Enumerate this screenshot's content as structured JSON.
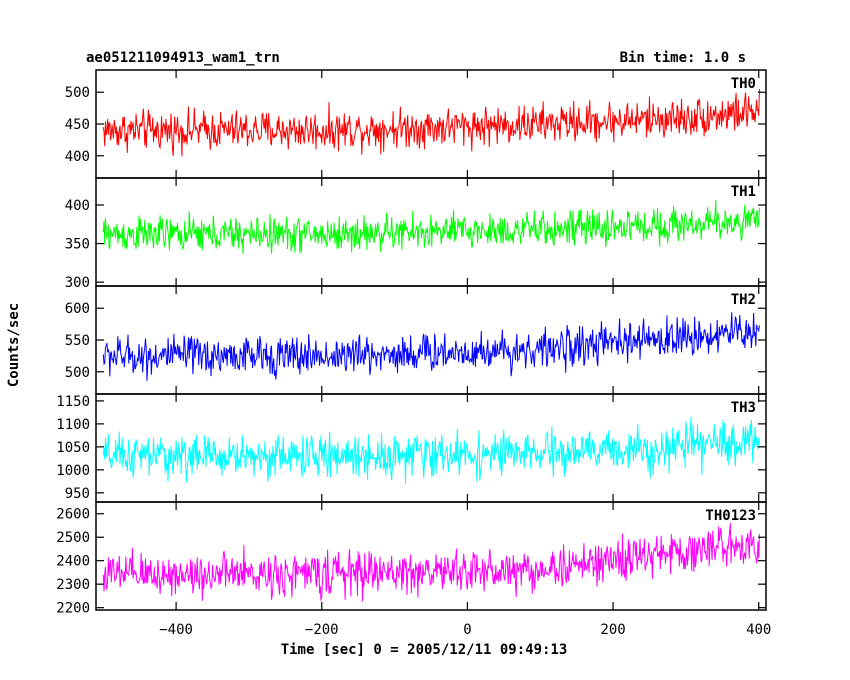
{
  "header": {
    "title": "ae051211094913_wam1_trn",
    "bin_time": "Bin time: 1.0 s"
  },
  "chart_data": {
    "type": "line",
    "title": "ae051211094913_wam1_trn",
    "subtitle": "Bin time: 1.0 s",
    "xlabel": "Time [sec] 0 = 2005/12/11 09:49:13",
    "ylabel": "Counts/sec",
    "xlim": [
      -510,
      410
    ],
    "x_ticks": [
      -400,
      -200,
      0,
      200,
      400
    ],
    "x_tick_labels": [
      "−400",
      "−200",
      "0",
      "200",
      "400"
    ],
    "x_range": [
      -500,
      401
    ],
    "grid": false,
    "panels": [
      {
        "name": "TH0",
        "color": "#ff0000",
        "ylim": [
          365,
          535
        ],
        "y_ticks": [
          400,
          450,
          500
        ],
        "y_tick_labels": [
          "400",
          "450",
          "500"
        ],
        "trend": [
          [
            -500,
            440
          ],
          [
            -200,
            440
          ],
          [
            100,
            450
          ],
          [
            300,
            460
          ],
          [
            401,
            470
          ]
        ],
        "noise_amp": 32
      },
      {
        "name": "TH1",
        "color": "#00ff00",
        "ylim": [
          295,
          435
        ],
        "y_ticks": [
          300,
          350,
          400
        ],
        "y_tick_labels": [
          "300",
          "350",
          "400"
        ],
        "trend": [
          [
            -500,
            362
          ],
          [
            -200,
            362
          ],
          [
            100,
            368
          ],
          [
            300,
            375
          ],
          [
            401,
            380
          ]
        ],
        "noise_amp": 24
      },
      {
        "name": "TH2",
        "color": "#0000ff",
        "ylim": [
          465,
          635
        ],
        "y_ticks": [
          500,
          550,
          600
        ],
        "y_tick_labels": [
          "500",
          "550",
          "600"
        ],
        "trend": [
          [
            -500,
            525
          ],
          [
            -200,
            525
          ],
          [
            100,
            535
          ],
          [
            300,
            555
          ],
          [
            401,
            565
          ]
        ],
        "noise_amp": 32
      },
      {
        "name": "TH3",
        "color": "#00ffff",
        "ylim": [
          930,
          1165
        ],
        "y_ticks": [
          950,
          1000,
          1050,
          1100,
          1150
        ],
        "y_tick_labels": [
          "950",
          "1000",
          "1050",
          "1100",
          "1150"
        ],
        "trend": [
          [
            -500,
            1030
          ],
          [
            -200,
            1030
          ],
          [
            100,
            1035
          ],
          [
            300,
            1050
          ],
          [
            401,
            1065
          ]
        ],
        "noise_amp": 48
      },
      {
        "name": "TH0123",
        "color": "#ff00ff",
        "ylim": [
          2190,
          2650
        ],
        "y_ticks": [
          2200,
          2300,
          2400,
          2500,
          2600
        ],
        "y_tick_labels": [
          "2200",
          "2300",
          "2400",
          "2500",
          "2600"
        ],
        "trend": [
          [
            -500,
            2340
          ],
          [
            -200,
            2345
          ],
          [
            100,
            2360
          ],
          [
            250,
            2420
          ],
          [
            401,
            2480
          ]
        ],
        "noise_amp": 95
      }
    ]
  }
}
